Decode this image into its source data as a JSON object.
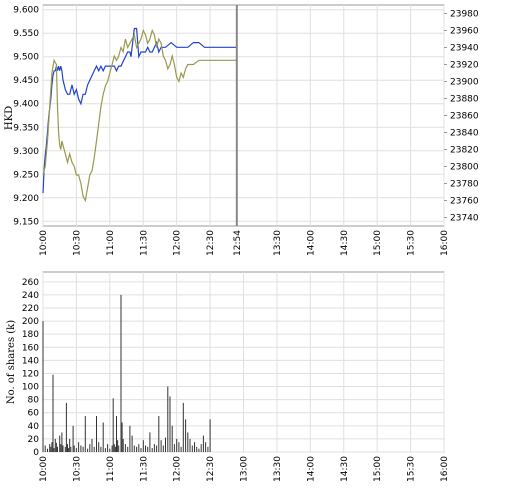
{
  "chart_data": [
    {
      "type": "line",
      "ylabel": "HKD",
      "x_ticks": [
        "10:00",
        "10:30",
        "11:00",
        "11:30",
        "12:00",
        "12:30",
        "12:54",
        "13:30",
        "14:00",
        "14:30",
        "15:00",
        "15:30",
        "16:00"
      ],
      "x_tick_positions": [
        0,
        30,
        60,
        90,
        120,
        150,
        174,
        210,
        240,
        270,
        300,
        330,
        360
      ],
      "x_range": [
        0,
        360
      ],
      "current_time_marker": 174,
      "y_left_ticks": [
        "9.150",
        "9.200",
        "9.250",
        "9.300",
        "9.350",
        "9.400",
        "9.450",
        "9.500",
        "9.550",
        "9.600"
      ],
      "y_left_range": [
        9.14,
        9.61
      ],
      "y_right_ticks": [
        "23740",
        "23760",
        "23780",
        "23800",
        "23820",
        "23840",
        "23860",
        "23880",
        "23900",
        "23920",
        "23940",
        "23960",
        "23980"
      ],
      "y_right_range": [
        23730,
        23990
      ],
      "grid": true,
      "series": [
        {
          "axis": "left",
          "color": "#2244cc",
          "x": [
            0,
            1,
            2,
            3,
            4,
            5,
            6,
            7,
            8,
            9,
            10,
            11,
            12,
            13,
            14,
            15,
            16,
            17,
            18,
            19,
            20,
            22,
            24,
            26,
            28,
            30,
            32,
            34,
            36,
            38,
            40,
            42,
            44,
            46,
            48,
            50,
            52,
            54,
            56,
            58,
            60,
            62,
            64,
            66,
            68,
            70,
            72,
            74,
            76,
            78,
            79,
            80,
            82,
            84,
            86,
            88,
            90,
            92,
            94,
            96,
            98,
            100,
            102,
            104,
            106,
            108,
            110,
            115,
            120,
            125,
            130,
            135,
            140,
            145,
            150,
            160,
            170,
            174
          ],
          "y": [
            9.21,
            9.26,
            9.29,
            9.31,
            9.34,
            9.37,
            9.39,
            9.41,
            9.44,
            9.46,
            9.47,
            9.47,
            9.48,
            9.47,
            9.48,
            9.47,
            9.48,
            9.47,
            9.45,
            9.44,
            9.43,
            9.42,
            9.42,
            9.44,
            9.42,
            9.43,
            9.41,
            9.4,
            9.42,
            9.42,
            9.44,
            9.45,
            9.46,
            9.47,
            9.48,
            9.47,
            9.48,
            9.47,
            9.48,
            9.48,
            9.48,
            9.48,
            9.48,
            9.47,
            9.48,
            9.48,
            9.49,
            9.5,
            9.51,
            9.51,
            9.5,
            9.52,
            9.56,
            9.56,
            9.5,
            9.51,
            9.51,
            9.51,
            9.52,
            9.51,
            9.51,
            9.52,
            9.53,
            9.51,
            9.52,
            9.52,
            9.52,
            9.53,
            9.52,
            9.52,
            9.52,
            9.53,
            9.53,
            9.52,
            9.52,
            9.52,
            9.52,
            9.52
          ]
        },
        {
          "axis": "right",
          "color": "#99994d",
          "x": [
            0,
            2,
            4,
            6,
            8,
            10,
            12,
            13,
            14,
            15,
            16,
            17,
            18,
            20,
            22,
            24,
            26,
            28,
            30,
            32,
            34,
            36,
            38,
            40,
            42,
            44,
            46,
            48,
            50,
            52,
            54,
            56,
            58,
            60,
            62,
            64,
            66,
            68,
            70,
            72,
            74,
            76,
            78,
            80,
            82,
            84,
            86,
            88,
            90,
            92,
            94,
            96,
            98,
            100,
            102,
            104,
            106,
            108,
            110,
            112,
            114,
            116,
            118,
            120,
            122,
            124,
            126,
            128,
            130,
            135,
            140,
            145,
            150,
            160,
            170,
            174
          ],
          "y": [
            23790,
            23800,
            23830,
            23870,
            23910,
            23925,
            23920,
            23870,
            23840,
            23825,
            23820,
            23830,
            23825,
            23815,
            23805,
            23815,
            23805,
            23800,
            23790,
            23790,
            23780,
            23765,
            23760,
            23775,
            23790,
            23795,
            23810,
            23830,
            23850,
            23870,
            23885,
            23895,
            23900,
            23910,
            23920,
            23930,
            23925,
            23930,
            23940,
            23935,
            23950,
            23940,
            23945,
            23950,
            23955,
            23940,
            23945,
            23950,
            23960,
            23955,
            23945,
            23950,
            23960,
            23955,
            23940,
            23950,
            23945,
            23930,
            23925,
            23915,
            23920,
            23930,
            23920,
            23905,
            23900,
            23910,
            23905,
            23915,
            23920,
            23920,
            23925,
            23925,
            23925,
            23925,
            23925,
            23925
          ]
        }
      ]
    },
    {
      "type": "bar",
      "ylabel": "No. of shares (k)",
      "x_ticks": [
        "10:00",
        "10:30",
        "11:00",
        "11:30",
        "12:00",
        "12:30",
        "13:00",
        "13:30",
        "14:00",
        "14:30",
        "15:00",
        "15:30",
        "16:00"
      ],
      "x_range": [
        0,
        360
      ],
      "y_ticks": [
        "0",
        "20",
        "40",
        "60",
        "80",
        "100",
        "120",
        "140",
        "160",
        "180",
        "200",
        "220",
        "240",
        "260"
      ],
      "ylim": [
        0,
        275
      ],
      "grid": true,
      "color": "#333333",
      "x": [
        0,
        2,
        4,
        6,
        7,
        8,
        9,
        10,
        11,
        12,
        13,
        15,
        16,
        17,
        18,
        20,
        21,
        22,
        23,
        24,
        25,
        27,
        28,
        30,
        32,
        34,
        36,
        38,
        40,
        42,
        44,
        46,
        48,
        50,
        52,
        54,
        56,
        58,
        60,
        62,
        63,
        64,
        65,
        66,
        67,
        68,
        70,
        71,
        72,
        74,
        76,
        78,
        80,
        82,
        84,
        86,
        88,
        90,
        92,
        94,
        96,
        98,
        100,
        102,
        104,
        106,
        108,
        110,
        112,
        114,
        116,
        118,
        120,
        122,
        124,
        126,
        128,
        130,
        132,
        134,
        136,
        138,
        140,
        142,
        144,
        146,
        148,
        150
      ],
      "values": [
        200,
        10,
        5,
        12,
        8,
        15,
        118,
        6,
        20,
        14,
        8,
        25,
        12,
        30,
        10,
        8,
        75,
        12,
        6,
        20,
        8,
        40,
        10,
        6,
        15,
        10,
        8,
        55,
        5,
        12,
        20,
        8,
        55,
        15,
        8,
        45,
        6,
        12,
        5,
        10,
        82,
        12,
        8,
        55,
        18,
        10,
        240,
        45,
        20,
        12,
        8,
        40,
        25,
        10,
        8,
        12,
        6,
        18,
        10,
        8,
        30,
        6,
        12,
        10,
        55,
        18,
        10,
        22,
        100,
        85,
        40,
        12,
        20,
        15,
        8,
        75,
        50,
        30,
        20,
        10,
        15,
        8,
        5,
        12,
        25,
        15,
        8,
        50
      ]
    }
  ]
}
